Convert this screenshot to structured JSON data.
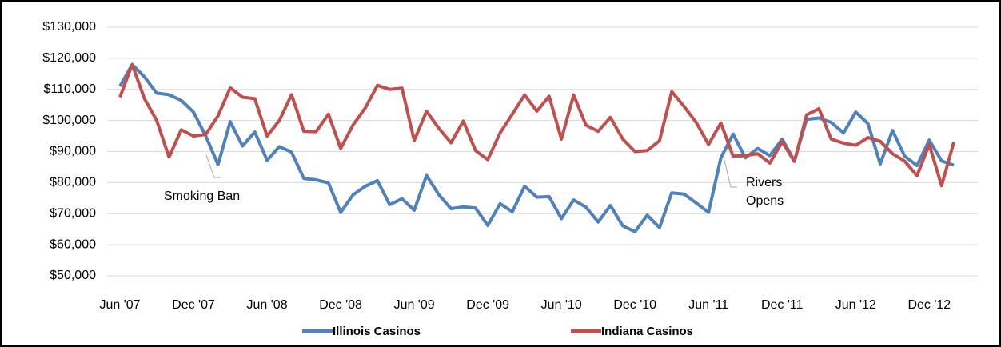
{
  "chart_data": {
    "type": "line",
    "categories": [
      "Jun '07",
      null,
      null,
      null,
      null,
      null,
      "Dec '07",
      null,
      null,
      null,
      null,
      null,
      "Jun '08",
      null,
      null,
      null,
      null,
      null,
      "Dec '08",
      null,
      null,
      null,
      null,
      null,
      "Jun '09",
      null,
      null,
      null,
      null,
      null,
      "Dec '09",
      null,
      null,
      null,
      null,
      null,
      "Jun '10",
      null,
      null,
      null,
      null,
      null,
      "Dec '10",
      null,
      null,
      null,
      null,
      null,
      "Jun '11",
      null,
      null,
      null,
      null,
      null,
      "Dec '11",
      null,
      null,
      null,
      null,
      null,
      "Jun '12",
      null,
      null,
      null,
      null,
      null,
      "Dec '12",
      null,
      null
    ],
    "series": [
      {
        "name": "Illinois Casinos",
        "color": "#4f81bd",
        "values": [
          111000,
          118000,
          114000,
          108800,
          108300,
          106500,
          102700,
          95000,
          85800,
          99600,
          91800,
          96300,
          87200,
          91600,
          89800,
          81300,
          80900,
          79900,
          70400,
          76000,
          78800,
          80600,
          72900,
          74800,
          71100,
          82300,
          76100,
          71600,
          72200,
          71800,
          66200,
          73200,
          70600,
          78800,
          75300,
          75500,
          68400,
          74400,
          72100,
          67300,
          72600,
          66100,
          64200,
          69500,
          65500,
          76700,
          76300,
          73400,
          70400,
          88000,
          95600,
          88000,
          91000,
          88700,
          94000,
          87000,
          100400,
          100800,
          99400,
          96000,
          102700,
          99000,
          86000,
          96800,
          88500,
          85500,
          93700,
          87000,
          85600
        ]
      },
      {
        "name": "Indiana Casinos",
        "color": "#c0504d",
        "values": [
          107500,
          118000,
          107000,
          100000,
          88200,
          97000,
          95000,
          95500,
          101500,
          110500,
          107500,
          107000,
          95000,
          100000,
          108300,
          96500,
          96400,
          102000,
          91000,
          98500,
          104000,
          111300,
          110000,
          110400,
          93500,
          103000,
          97500,
          92800,
          99800,
          90300,
          87400,
          96000,
          102000,
          108200,
          103000,
          107800,
          94000,
          108200,
          98500,
          96500,
          101000,
          94000,
          90000,
          90300,
          93500,
          109300,
          104500,
          99300,
          92300,
          99200,
          88500,
          88700,
          89300,
          86300,
          93200,
          86800,
          101800,
          103800,
          94000,
          92700,
          92000,
          94500,
          93300,
          89300,
          86900,
          82200,
          92300,
          79000,
          93000
        ]
      }
    ],
    "ylim": [
      50000,
      130000
    ],
    "yticks": [
      {
        "value": 50000,
        "label": "$50,000"
      },
      {
        "value": 60000,
        "label": "$60,000"
      },
      {
        "value": 70000,
        "label": "$70,000"
      },
      {
        "value": 80000,
        "label": "$80,000"
      },
      {
        "value": 90000,
        "label": "$90,000"
      },
      {
        "value": 100000,
        "label": "$100,000"
      },
      {
        "value": 110000,
        "label": "$110,000"
      },
      {
        "value": 120000,
        "label": "$120,000"
      },
      {
        "value": 130000,
        "label": "$130,000"
      }
    ],
    "grid": true,
    "annotations": [
      {
        "text": [
          "Smoking Ban"
        ]
      },
      {
        "text": [
          "Rivers",
          "Opens"
        ]
      }
    ]
  }
}
